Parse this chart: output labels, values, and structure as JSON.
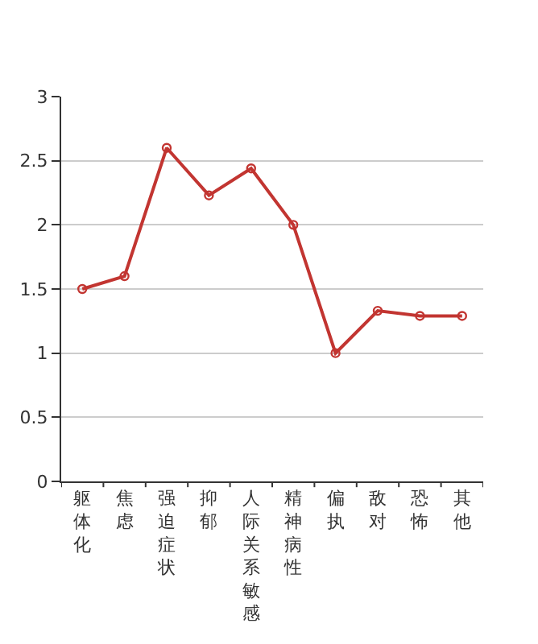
{
  "chart_data": {
    "type": "line",
    "categories": [
      "躯体化",
      "焦虑",
      "强迫症状",
      "抑郁",
      "人际关系敏感",
      "精神病性",
      "偏执",
      "敌对",
      "恐怖",
      "其他"
    ],
    "series": [
      {
        "color": "#c23531",
        "values": [
          1.5,
          1.6,
          2.6,
          2.23,
          2.44,
          2.0,
          1.0,
          1.33,
          1.29,
          1.29
        ]
      }
    ],
    "ylim": [
      0,
      3
    ],
    "yticks": [
      0,
      0.5,
      1,
      1.5,
      2,
      2.5,
      3
    ],
    "grid": "y",
    "marker": "circle",
    "line_style": "solid"
  }
}
